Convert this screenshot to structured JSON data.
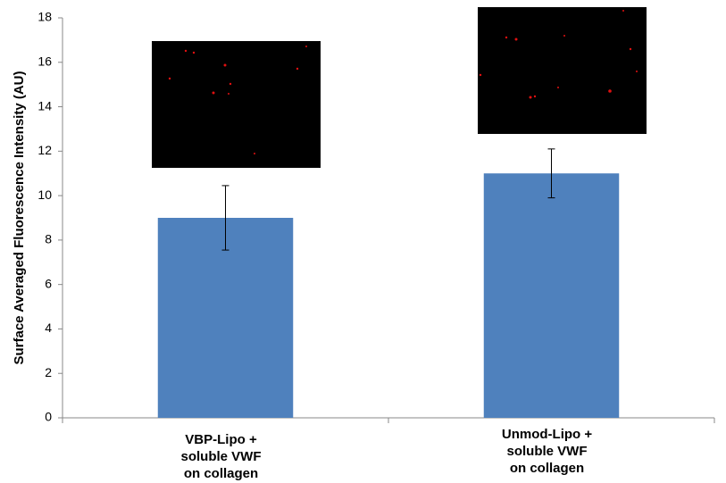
{
  "chart_data": {
    "type": "bar",
    "y_label": "Surface Averaged Fluorescence Intensity (AU)",
    "categories": [
      [
        "VBP-Lipo +",
        "soluble VWF",
        "on collagen"
      ],
      [
        "Unmod-Lipo +",
        "soluble VWF",
        "on collagen"
      ]
    ],
    "values": [
      9,
      11
    ],
    "errors": [
      1.45,
      1.1
    ],
    "color": "#4f81bd",
    "ylim": [
      0,
      18
    ],
    "yticks": [
      0,
      2,
      4,
      6,
      8,
      10,
      12,
      14,
      16,
      18
    ],
    "grid": false
  }
}
